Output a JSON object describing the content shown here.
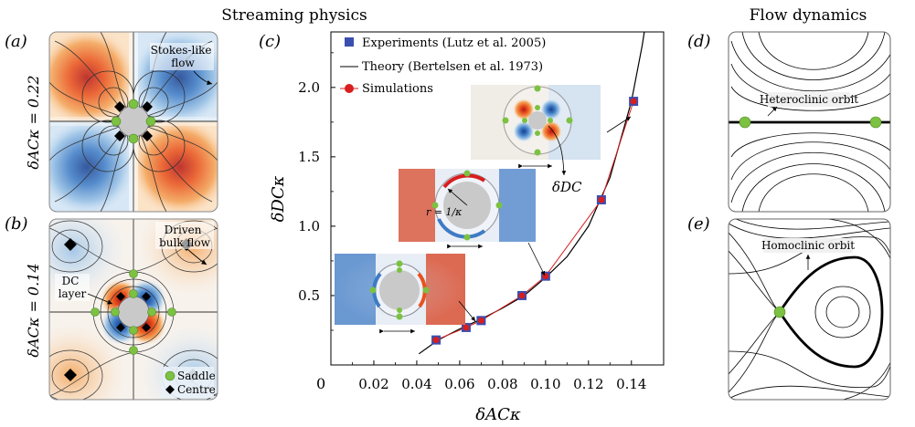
{
  "figure": {
    "headers": {
      "left": "Streaming physics",
      "right": "Flow dynamics"
    },
    "panel_labels": [
      "(a)",
      "(b)",
      "(c)",
      "(d)",
      "(e)"
    ],
    "panel_a": {
      "side_label": "δACκ = 0.22",
      "annotation": "Stokes-like flow"
    },
    "panel_b": {
      "side_label": "δACκ = 0.14",
      "annotation_bulk": "Driven bulk flow",
      "annotation_layer": "DC layer",
      "legend": [
        {
          "label": "Saddle",
          "marker": "circle",
          "color": "#7cc142"
        },
        {
          "label": "Centre",
          "marker": "diamond",
          "color": "#000000"
        }
      ]
    },
    "inset_labels": {
      "radius": "r = 1/κ",
      "delta_dc": "δDC"
    },
    "panel_d": {
      "annotation": "Heteroclinic orbit"
    },
    "panel_e": {
      "annotation": "Homoclinic orbit"
    },
    "colors": {
      "warm": "#e8721e",
      "cool": "#3e7bc4",
      "saddle": "#7cc142",
      "sim": "#d81e1e",
      "exp": "#3a4fb0"
    }
  },
  "chart_data": {
    "type": "scatter",
    "xlabel": "δACκ",
    "ylabel": "δDCκ",
    "xlim": [
      0,
      0.155
    ],
    "ylim": [
      0,
      2.4
    ],
    "xticks": [
      0.02,
      0.04,
      0.06,
      0.08,
      0.1,
      0.12,
      0.14
    ],
    "yticks": [
      0.5,
      1.0,
      1.5,
      2.0
    ],
    "origin_label": "0",
    "series": [
      {
        "name": "Experiments (Lutz et al. 2005)",
        "kind": "square",
        "x": [
          0.049,
          0.063,
          0.07,
          0.089,
          0.1,
          0.126,
          0.141
        ],
        "y": [
          0.18,
          0.27,
          0.32,
          0.5,
          0.64,
          1.19,
          1.9
        ]
      },
      {
        "name": "Theory (Bertelsen et al. 1973)",
        "kind": "line",
        "x": [
          0.041,
          0.05,
          0.06,
          0.07,
          0.08,
          0.09,
          0.1,
          0.11,
          0.12,
          0.13,
          0.14,
          0.145,
          0.148
        ],
        "y": [
          0.08,
          0.18,
          0.26,
          0.33,
          0.41,
          0.5,
          0.63,
          0.78,
          1.0,
          1.35,
          1.9,
          2.3,
          2.6
        ]
      },
      {
        "name": "Simulations",
        "kind": "line-marker",
        "x": [
          0.049,
          0.063,
          0.07,
          0.089,
          0.1,
          0.126,
          0.141
        ],
        "y": [
          0.18,
          0.27,
          0.32,
          0.5,
          0.64,
          1.19,
          1.9
        ]
      }
    ]
  }
}
